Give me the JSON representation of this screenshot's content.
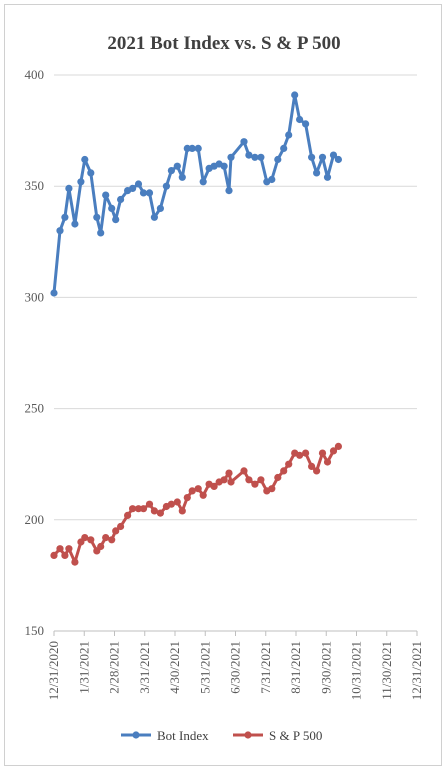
{
  "chart_data": {
    "type": "line",
    "title": "2021 Bot Index vs. S & P 500",
    "xlabel": "",
    "ylabel": "",
    "ylim": [
      150,
      400
    ],
    "yticks": [
      150,
      200,
      250,
      300,
      350,
      400
    ],
    "xlim": [
      "2020-12-31",
      "2021-12-31"
    ],
    "xtick_labels": [
      "12/31/2020",
      "1/31/2021",
      "2/28/2021",
      "3/31/2021",
      "4/30/2021",
      "5/31/2021",
      "6/30/2021",
      "7/31/2021",
      "8/31/2021",
      "9/30/2021",
      "10/31/2021",
      "11/30/2021",
      "12/31/2021"
    ],
    "grid": "horizontal",
    "legend_position": "bottom",
    "series": [
      {
        "name": "Bot Index",
        "color": "#4a7ebf",
        "points": [
          [
            "2020-12-31",
            302
          ],
          [
            "2021-01-06",
            330
          ],
          [
            "2021-01-11",
            336
          ],
          [
            "2021-01-15",
            349
          ],
          [
            "2021-01-21",
            333
          ],
          [
            "2021-01-27",
            352
          ],
          [
            "2021-01-31",
            362
          ],
          [
            "2021-02-06",
            356
          ],
          [
            "2021-02-12",
            336
          ],
          [
            "2021-02-16",
            329
          ],
          [
            "2021-02-21",
            346
          ],
          [
            "2021-02-27",
            340
          ],
          [
            "2021-03-03",
            335
          ],
          [
            "2021-03-08",
            344
          ],
          [
            "2021-03-15",
            348
          ],
          [
            "2021-03-20",
            349
          ],
          [
            "2021-03-26",
            351
          ],
          [
            "2021-03-31",
            347
          ],
          [
            "2021-04-06",
            347
          ],
          [
            "2021-04-11",
            336
          ],
          [
            "2021-04-17",
            340
          ],
          [
            "2021-04-23",
            350
          ],
          [
            "2021-04-28",
            357
          ],
          [
            "2021-05-04",
            359
          ],
          [
            "2021-05-09",
            354
          ],
          [
            "2021-05-14",
            367
          ],
          [
            "2021-05-19",
            367
          ],
          [
            "2021-05-25",
            367
          ],
          [
            "2021-05-30",
            352
          ],
          [
            "2021-06-05",
            358
          ],
          [
            "2021-06-10",
            359
          ],
          [
            "2021-06-15",
            360
          ],
          [
            "2021-06-20",
            359
          ],
          [
            "2021-06-25",
            348
          ],
          [
            "2021-06-27",
            363
          ],
          [
            "2021-07-10",
            370
          ],
          [
            "2021-07-15",
            364
          ],
          [
            "2021-07-21",
            363
          ],
          [
            "2021-07-27",
            363
          ],
          [
            "2021-08-02",
            352
          ],
          [
            "2021-08-07",
            353
          ],
          [
            "2021-08-13",
            362
          ],
          [
            "2021-08-19",
            367
          ],
          [
            "2021-08-24",
            373
          ],
          [
            "2021-08-30",
            391
          ],
          [
            "2021-09-04",
            380
          ],
          [
            "2021-09-10",
            378
          ],
          [
            "2021-09-16",
            363
          ],
          [
            "2021-09-21",
            356
          ],
          [
            "2021-09-27",
            363
          ],
          [
            "2021-10-02",
            354
          ],
          [
            "2021-10-08",
            364
          ],
          [
            "2021-10-13",
            362
          ]
        ]
      },
      {
        "name": "S & P 500",
        "color": "#c0504d",
        "points": [
          [
            "2020-12-31",
            184
          ],
          [
            "2021-01-06",
            187
          ],
          [
            "2021-01-11",
            184
          ],
          [
            "2021-01-15",
            187
          ],
          [
            "2021-01-21",
            181
          ],
          [
            "2021-01-27",
            190
          ],
          [
            "2021-01-31",
            192
          ],
          [
            "2021-02-06",
            191
          ],
          [
            "2021-02-12",
            186
          ],
          [
            "2021-02-16",
            188
          ],
          [
            "2021-02-21",
            192
          ],
          [
            "2021-02-27",
            191
          ],
          [
            "2021-03-03",
            195
          ],
          [
            "2021-03-08",
            197
          ],
          [
            "2021-03-15",
            202
          ],
          [
            "2021-03-20",
            205
          ],
          [
            "2021-03-26",
            205
          ],
          [
            "2021-03-31",
            205
          ],
          [
            "2021-04-06",
            207
          ],
          [
            "2021-04-11",
            204
          ],
          [
            "2021-04-17",
            203
          ],
          [
            "2021-04-23",
            206
          ],
          [
            "2021-04-28",
            207
          ],
          [
            "2021-05-04",
            208
          ],
          [
            "2021-05-09",
            204
          ],
          [
            "2021-05-14",
            210
          ],
          [
            "2021-05-19",
            213
          ],
          [
            "2021-05-25",
            214
          ],
          [
            "2021-05-30",
            211
          ],
          [
            "2021-06-05",
            216
          ],
          [
            "2021-06-10",
            215
          ],
          [
            "2021-06-15",
            217
          ],
          [
            "2021-06-20",
            218
          ],
          [
            "2021-06-25",
            221
          ],
          [
            "2021-06-27",
            217
          ],
          [
            "2021-07-10",
            222
          ],
          [
            "2021-07-15",
            218
          ],
          [
            "2021-07-21",
            216
          ],
          [
            "2021-07-27",
            218
          ],
          [
            "2021-08-02",
            213
          ],
          [
            "2021-08-07",
            214
          ],
          [
            "2021-08-13",
            219
          ],
          [
            "2021-08-19",
            222
          ],
          [
            "2021-08-24",
            225
          ],
          [
            "2021-08-30",
            230
          ],
          [
            "2021-09-04",
            229
          ],
          [
            "2021-09-10",
            230
          ],
          [
            "2021-09-16",
            224
          ],
          [
            "2021-09-21",
            222
          ],
          [
            "2021-09-27",
            230
          ],
          [
            "2021-10-02",
            226
          ],
          [
            "2021-10-08",
            231
          ],
          [
            "2021-10-13",
            233
          ]
        ]
      }
    ]
  }
}
